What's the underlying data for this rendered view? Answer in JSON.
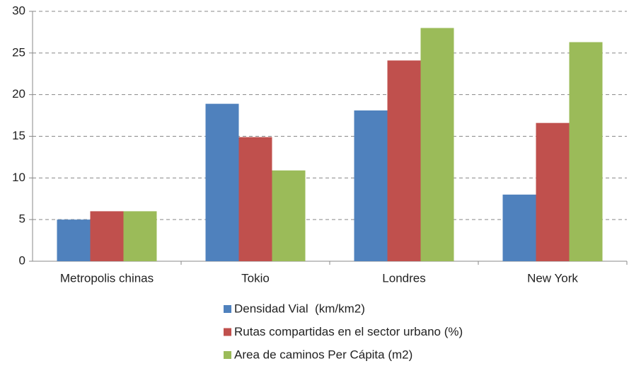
{
  "chart_data": {
    "type": "bar",
    "categories": [
      "Metropolis chinas",
      "Tokio",
      "Londres",
      "New York"
    ],
    "series": [
      {
        "name": "Densidad Vial  (km/km2)",
        "color": "#4f81bd",
        "values": [
          5,
          18.9,
          18.1,
          8
        ]
      },
      {
        "name": "Rutas compartidas en el sector urbano (%)",
        "color": "#c0504d",
        "values": [
          6,
          14.9,
          24.1,
          16.6
        ]
      },
      {
        "name": "Area de caminos Per Cápita (m2)",
        "color": "#9bbb59",
        "values": [
          6,
          10.9,
          28,
          26.3
        ]
      }
    ],
    "ylim": [
      0,
      30
    ],
    "yticks": [
      0,
      5,
      10,
      15,
      20,
      25,
      30
    ],
    "grid": true,
    "legend": "bottom"
  }
}
